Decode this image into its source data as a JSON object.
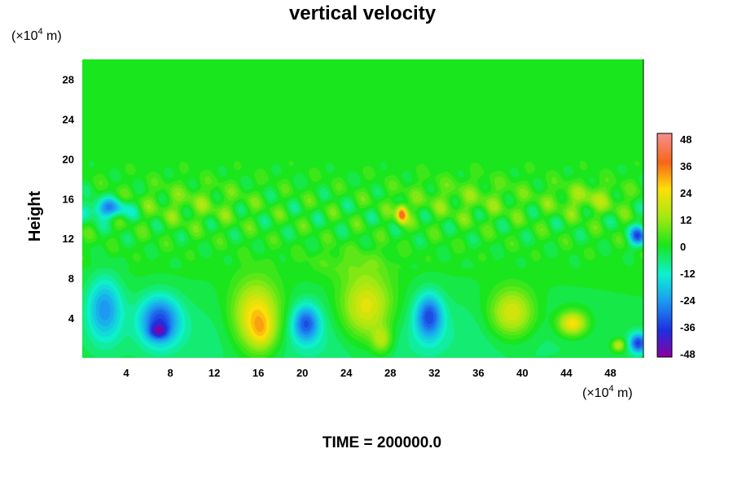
{
  "chart_data": {
    "type": "heatmap",
    "title": "vertical velocity",
    "ylabel": "Height",
    "x_unit_base": "(×10",
    "x_unit_exp": "4",
    "x_unit_tail": " m)",
    "y_unit_base": "(×10",
    "y_unit_exp": "4",
    "y_unit_tail": " m)",
    "footer": "TIME = 200000.0",
    "xlim": [
      0,
      51
    ],
    "ylim": [
      0,
      30
    ],
    "x_ticks": [
      "4",
      "8",
      "12",
      "16",
      "20",
      "24",
      "28",
      "32",
      "36",
      "40",
      "44",
      "48"
    ],
    "y_ticks": [
      "4",
      "8",
      "12",
      "16",
      "20",
      "24",
      "28"
    ],
    "colorbar": {
      "range": [
        -48,
        48
      ],
      "ticks": [
        "48",
        "36",
        "24",
        "12",
        "0",
        "-12",
        "-24",
        "-36",
        "-48"
      ]
    },
    "background_value": 0,
    "features": [
      {
        "x": 15.8,
        "y": 4.2,
        "rx": 2.2,
        "ry": 3.4,
        "value": 30
      },
      {
        "x": 16.3,
        "y": 2.5,
        "rx": 1.2,
        "ry": 1.8,
        "value": 12
      },
      {
        "x": 25.8,
        "y": 5.0,
        "rx": 2.4,
        "ry": 3.4,
        "value": 26
      },
      {
        "x": 27.2,
        "y": 1.8,
        "rx": 0.9,
        "ry": 1.3,
        "value": 16
      },
      {
        "x": 39.0,
        "y": 4.5,
        "rx": 2.0,
        "ry": 2.4,
        "value": 24
      },
      {
        "x": 44.5,
        "y": 3.5,
        "rx": 1.3,
        "ry": 1.2,
        "value": 28
      },
      {
        "x": 29.0,
        "y": 14.5,
        "rx": 0.5,
        "ry": 0.9,
        "value": 38
      },
      {
        "x": 48.7,
        "y": 1.3,
        "rx": 0.6,
        "ry": 0.6,
        "value": 20
      },
      {
        "x": 7.0,
        "y": 3.8,
        "rx": 1.8,
        "ry": 2.4,
        "value": -30
      },
      {
        "x": 6.9,
        "y": 2.7,
        "rx": 0.8,
        "ry": 0.7,
        "value": -18
      },
      {
        "x": 2.0,
        "y": 5.0,
        "rx": 1.6,
        "ry": 3.2,
        "value": -22
      },
      {
        "x": 20.3,
        "y": 3.5,
        "rx": 1.2,
        "ry": 1.8,
        "value": -26
      },
      {
        "x": 31.5,
        "y": 4.2,
        "rx": 1.2,
        "ry": 2.2,
        "value": -28
      },
      {
        "x": 2.2,
        "y": 15.0,
        "rx": 2.0,
        "ry": 1.0,
        "value": -24
      },
      {
        "x": 50.5,
        "y": 12.3,
        "rx": 0.8,
        "ry": 1.0,
        "value": -30
      },
      {
        "x": 50.5,
        "y": 1.5,
        "rx": 0.8,
        "ry": 1.0,
        "value": -32
      },
      {
        "x": 24.0,
        "y": 9.5,
        "rx": 4.0,
        "ry": 1.5,
        "value": 5
      },
      {
        "x": 10.0,
        "y": 15.5,
        "rx": 5.0,
        "ry": 2.0,
        "value": 6
      },
      {
        "x": 35.0,
        "y": 16.0,
        "rx": 6.0,
        "ry": 2.0,
        "value": 6
      },
      {
        "x": 46.0,
        "y": 16.0,
        "rx": 3.0,
        "ry": 1.5,
        "value": 10
      },
      {
        "x": 25.0,
        "y": 2.0,
        "rx": 26.0,
        "ry": 5.0,
        "value": -8
      }
    ]
  }
}
